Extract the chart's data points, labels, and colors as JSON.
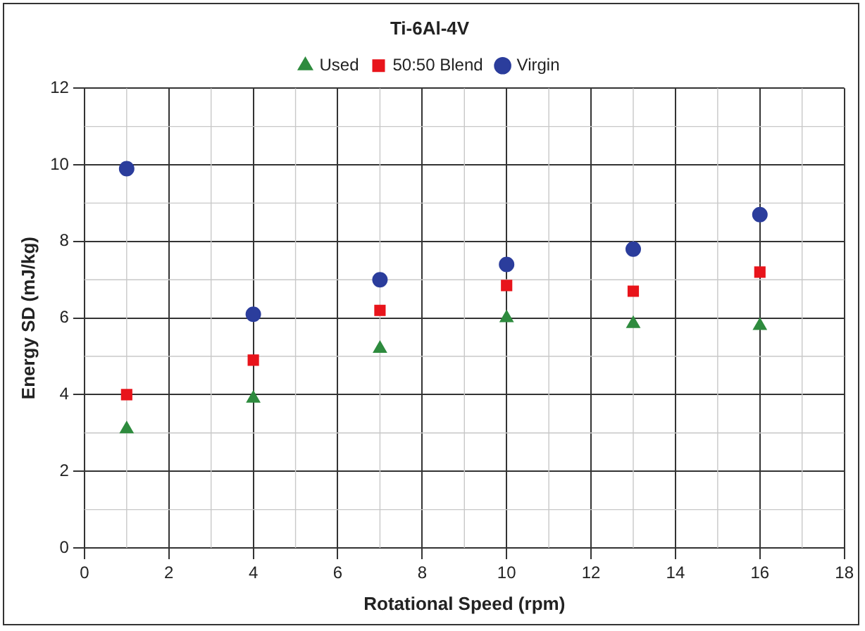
{
  "chart_data": {
    "type": "scatter",
    "title": "Ti-6Al-4V",
    "xlabel": "Rotational Speed (rpm)",
    "ylabel": "Energy SD (mJ/kg)",
    "x": [
      1,
      4,
      7,
      10,
      13,
      16
    ],
    "series": [
      {
        "name": "Used",
        "color": "#2e8b3e",
        "marker": "triangle",
        "values": [
          3.1,
          3.9,
          5.2,
          6.0,
          5.85,
          5.8
        ]
      },
      {
        "name": "50:50 Blend",
        "color": "#e8141b",
        "marker": "square",
        "values": [
          4.0,
          4.9,
          6.2,
          6.85,
          6.7,
          7.2
        ]
      },
      {
        "name": "Virgin",
        "color": "#2b3d9c",
        "marker": "circle",
        "values": [
          9.9,
          6.1,
          7.0,
          7.4,
          7.8,
          8.7
        ]
      }
    ],
    "xlim": [
      0,
      18
    ],
    "xticks": [
      0,
      2,
      4,
      6,
      8,
      10,
      12,
      14,
      16,
      18
    ],
    "ylim": [
      0,
      12
    ],
    "yticks": [
      0,
      2,
      4,
      6,
      8,
      10,
      12
    ],
    "grid": true,
    "legend": "top"
  }
}
